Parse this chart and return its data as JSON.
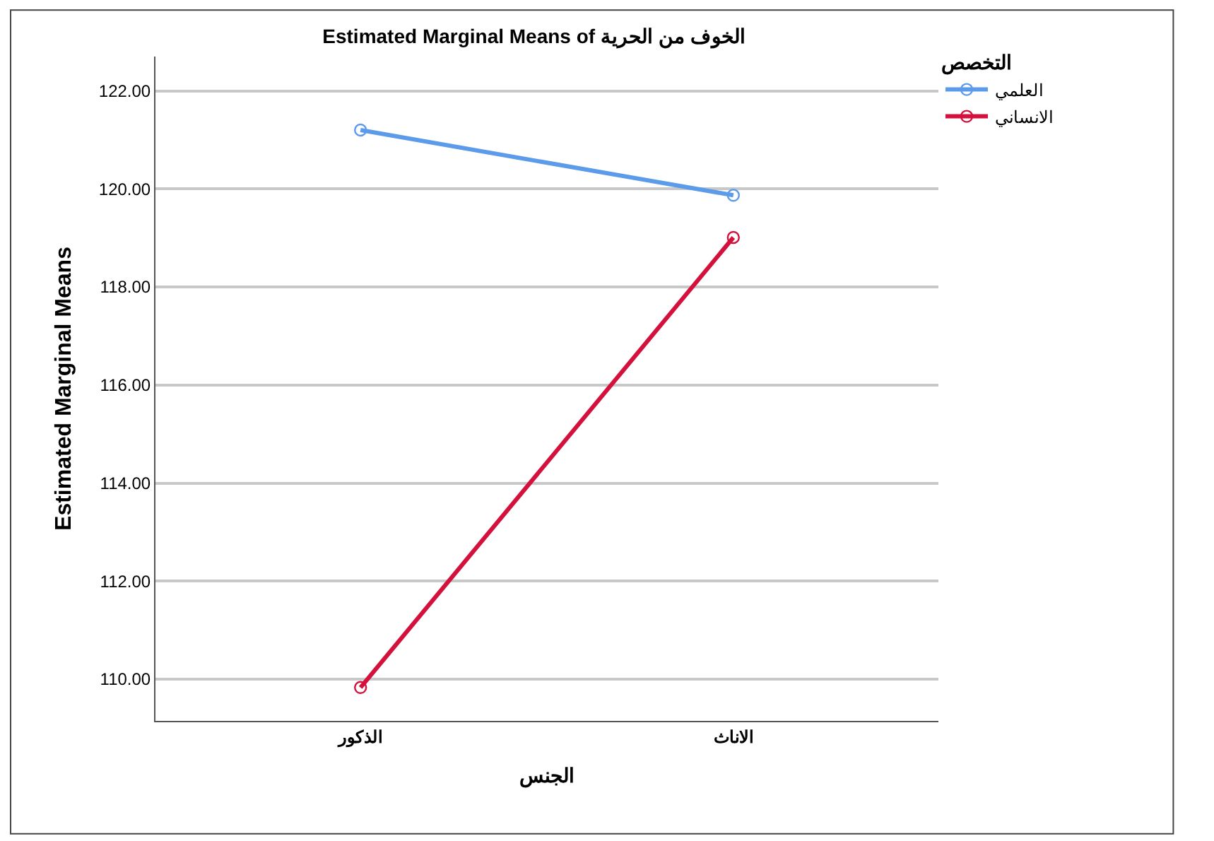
{
  "chart_data": {
    "type": "line",
    "title": "Estimated Marginal Means of الخوف من الحرية",
    "xlabel": "الجنس",
    "ylabel": "Estimated Marginal Means",
    "legend_title": "التخصص",
    "categories": [
      "الذكور",
      "الاناث"
    ],
    "series": [
      {
        "name": "العلمي",
        "color": "#5b9bea",
        "values": [
          121.2,
          119.87
        ]
      },
      {
        "name": "الانساني",
        "color": "#d4113d",
        "values": [
          109.83,
          119.01
        ]
      }
    ],
    "ylim": [
      109.15,
      122.7
    ],
    "yticks": [
      {
        "value": 110,
        "label": "110.00"
      },
      {
        "value": 112,
        "label": "112.00"
      },
      {
        "value": 114,
        "label": "114.00"
      },
      {
        "value": 116,
        "label": "116.00"
      },
      {
        "value": 118,
        "label": "118.00"
      },
      {
        "value": 120,
        "label": "120.00"
      },
      {
        "value": 122,
        "label": "122.00"
      }
    ],
    "grid": "y",
    "legend": "top right",
    "marker": "circle",
    "line_style": "solid"
  }
}
